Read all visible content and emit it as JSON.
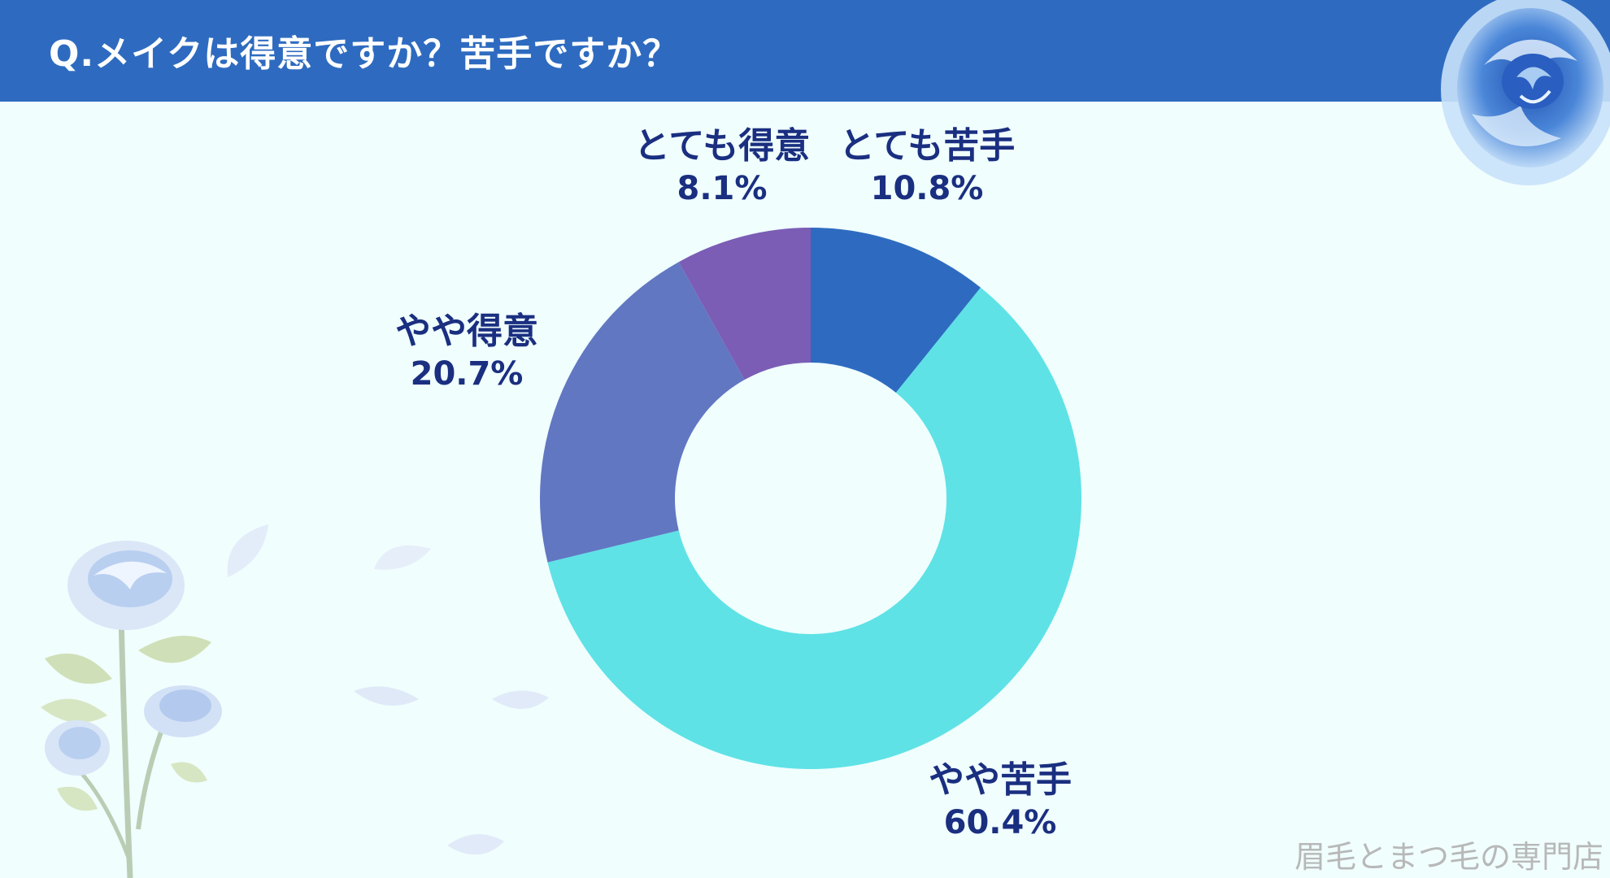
{
  "header": {
    "title": "Q.メイクは得意ですか？苦手ですか？",
    "color": "#2e6bc0"
  },
  "footer": {
    "brand": "眉毛とまつ毛の専門店"
  },
  "chart_data": {
    "type": "pie",
    "donut": true,
    "title": "Q.メイクは得意ですか？苦手ですか？",
    "categories": [
      "とても苦手",
      "やや苦手",
      "やや得意",
      "とても得意"
    ],
    "values": [
      10.8,
      60.4,
      20.7,
      8.1
    ],
    "labels": [
      "10.8%",
      "60.4%",
      "20.7%",
      "8.1%"
    ],
    "colors": [
      "#2e6bc0",
      "#5ee2e6",
      "#6177c2",
      "#7b5db5"
    ],
    "start": "top, clockwise",
    "legend": "none (direct labels)"
  }
}
